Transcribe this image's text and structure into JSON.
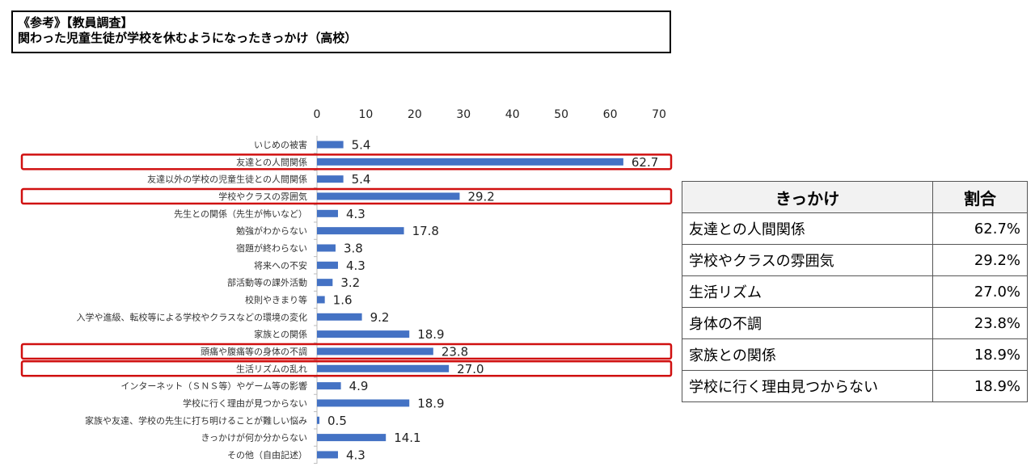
{
  "header": {
    "line1": "《参考》【教員調査】",
    "line2": "関わった児童生徒が学校を休むようになったきっかけ（高校）"
  },
  "chart_data": {
    "type": "bar",
    "orientation": "horizontal",
    "xlim": [
      0,
      70
    ],
    "ticks": [
      0,
      10,
      20,
      30,
      40,
      50,
      60,
      70
    ],
    "bar_color": "#4472c4",
    "highlight_color": "#d01010",
    "categories": [
      "いじめの被害",
      "友達との人間関係",
      "友達以外の学校の児童生徒との人間関係",
      "学校やクラスの雰囲気",
      "先生との関係（先生が怖いなど）",
      "勉強がわからない",
      "宿題が終わらない",
      "将来への不安",
      "部活動等の課外活動",
      "校則やきまり等",
      "入学や進級、転校等による学校やクラスなどの環境の変化",
      "家族との関係",
      "頭痛や腹痛等の身体の不調",
      "生活リズムの乱れ",
      "インターネット（ＳＮＳ等）やゲーム等の影響",
      "学校に行く理由が見つからない",
      "家族や友達、学校の先生に打ち明けることが難しい悩み",
      "きっかけが何か分からない",
      "その他（自由記述）"
    ],
    "values": [
      5.4,
      62.7,
      5.4,
      29.2,
      4.3,
      17.8,
      3.8,
      4.3,
      3.2,
      1.6,
      9.2,
      18.9,
      23.8,
      27.0,
      4.9,
      18.9,
      0.5,
      14.1,
      4.3
    ],
    "value_labels": [
      "5.4",
      "62.7",
      "5.4",
      "29.2",
      "4.3",
      "17.8",
      "3.8",
      "4.3",
      "3.2",
      "1.6",
      "9.2",
      "18.9",
      "23.8",
      "27.0",
      "4.9",
      "18.9",
      "0.5",
      "14.1",
      "4.3"
    ],
    "highlighted": [
      1,
      3,
      12,
      13
    ]
  },
  "table": {
    "headers": [
      "きっかけ",
      "割合"
    ],
    "rows": [
      [
        "友達との人間関係",
        "62.7%"
      ],
      [
        "学校やクラスの雰囲気",
        "29.2%"
      ],
      [
        "生活リズム",
        "27.0%"
      ],
      [
        "身体の不調",
        "23.8%"
      ],
      [
        "家族との関係",
        "18.9%"
      ],
      [
        "学校に行く理由見つからない",
        "18.9%"
      ]
    ]
  }
}
